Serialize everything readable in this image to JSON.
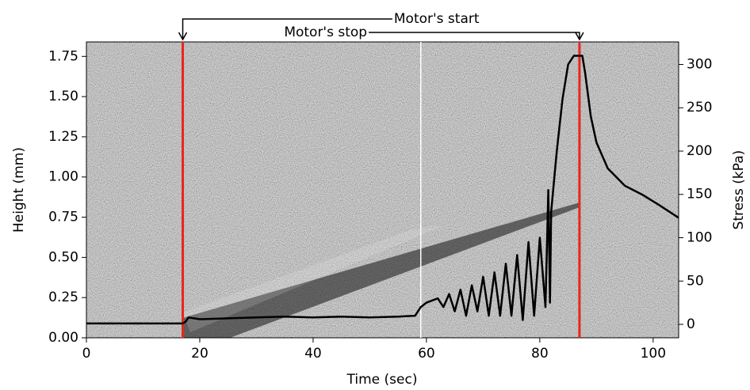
{
  "chart_data": {
    "type": "line",
    "xlabel": "Time (sec)",
    "ylabel": "Height (mm)",
    "y2label": "Stress (kPa)",
    "xlim": [
      0,
      104.5
    ],
    "xticks": [
      0,
      20,
      40,
      60,
      80,
      100
    ],
    "ylim": [
      0,
      1.84
    ],
    "yticks": [
      {
        "value": 0,
        "label": "0.00"
      },
      0.25,
      {
        "value": 0.5,
        "label": "0.50"
      },
      0.75,
      {
        "value": 1,
        "label": "1.00"
      },
      1.25,
      {
        "value": 1.5,
        "label": "1.50"
      },
      1.75
    ],
    "y2lim": [
      -15.5,
      326
    ],
    "y2ticks": [
      0,
      50,
      100,
      150,
      200,
      250,
      300
    ],
    "vlines": [
      {
        "x": 17,
        "color": "#e8261c"
      },
      {
        "x": 87,
        "color": "#e8261c"
      },
      {
        "x": 59,
        "color": "#ffffff"
      }
    ],
    "annotations": [
      {
        "text": "Motor's start",
        "x": 17
      },
      {
        "text": "Motor's stop",
        "x": 87
      }
    ],
    "series": [
      {
        "color": "#000000",
        "axis": "y2",
        "x": [
          0,
          17,
          17.5,
          18,
          20,
          25,
          30,
          35,
          40,
          45,
          50,
          55,
          58,
          59,
          60,
          62,
          63,
          64,
          65,
          66,
          67,
          68,
          69,
          70,
          71,
          72,
          73,
          74,
          75,
          76,
          77,
          78,
          79,
          80,
          81,
          81.5,
          81.8,
          82,
          83,
          84,
          85,
          86,
          87.5,
          88,
          89,
          90,
          92,
          95,
          98,
          101,
          104.5
        ],
        "values": [
          1,
          1,
          3,
          8,
          6,
          7,
          8,
          9,
          8,
          9,
          8,
          9,
          10,
          20,
          25,
          30,
          20,
          35,
          15,
          40,
          10,
          45,
          15,
          55,
          10,
          60,
          10,
          70,
          10,
          80,
          5,
          95,
          10,
          100,
          20,
          155,
          25,
          130,
          200,
          260,
          300,
          310,
          310,
          290,
          240,
          210,
          180,
          160,
          150,
          138,
          123
        ]
      }
    ]
  }
}
